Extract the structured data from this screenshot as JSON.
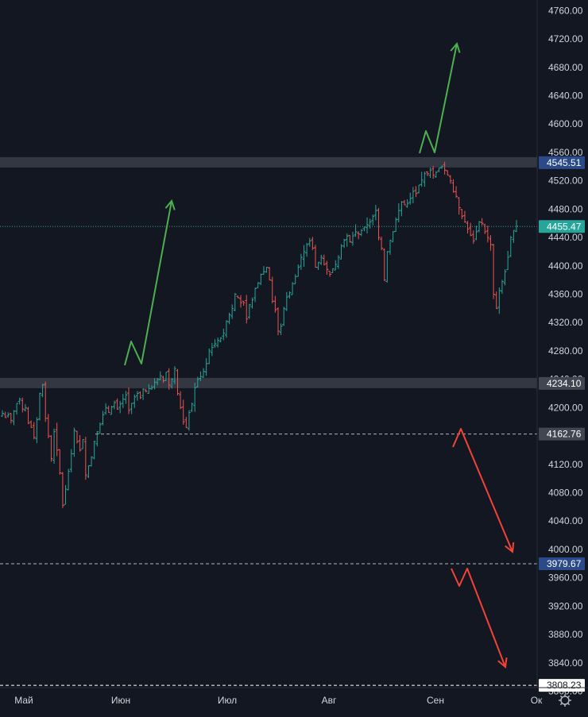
{
  "chart_data": {
    "type": "ohlc",
    "y_range": [
      3805,
      4775
    ],
    "y_ticks": [
      "4760.00",
      "4720.00",
      "4680.00",
      "4640.00",
      "4600.00",
      "4560.00",
      "4520.00",
      "4480.00",
      "4440.00",
      "4400.00",
      "4360.00",
      "4320.00",
      "4280.00",
      "4240.00",
      "4200.00",
      "4160.00",
      "4120.00",
      "4080.00",
      "4040.00",
      "4000.00",
      "3960.00",
      "3920.00",
      "3880.00",
      "3840.00",
      "3800.00"
    ],
    "x_labels": [
      "Май",
      "Июн",
      "Июл",
      "Авг",
      "Сен",
      "Ок"
    ],
    "last_price": "4455.47",
    "levels": [
      {
        "label": "4545.51",
        "value": 4545.51,
        "kind": "zone",
        "badge": "#2a4a8a"
      },
      {
        "label": "4234.10",
        "value": 4234.1,
        "kind": "zone",
        "badge": "#434651"
      },
      {
        "label": "4162.76",
        "value": 4162.76,
        "kind": "dashed",
        "badge": "#434651"
      },
      {
        "label": "3979.67",
        "value": 3979.67,
        "kind": "dashed",
        "badge": "#2a4a8a"
      },
      {
        "label": "3808.23",
        "value": 3808.23,
        "kind": "dashed-white",
        "badge": "#ffffff"
      }
    ],
    "closes": [
      4192,
      4186,
      4190,
      4182,
      4195,
      4206,
      4212,
      4198,
      4200,
      4178,
      4172,
      4158,
      4183,
      4220,
      4232,
      4185,
      4160,
      4128,
      4166,
      4140,
      4108,
      4062,
      4085,
      4110,
      4135,
      4168,
      4152,
      4140,
      4155,
      4105,
      4118,
      4130,
      4152,
      4166,
      4176,
      4190,
      4200,
      4193,
      4201,
      4207,
      4198,
      4205,
      4212,
      4218,
      4196,
      4206,
      4215,
      4220,
      4214,
      4226,
      4223,
      4227,
      4228,
      4236,
      4240,
      4245,
      4238,
      4250,
      4232,
      4240,
      4255,
      4220,
      4200,
      4180,
      4172,
      4193,
      4205,
      4228,
      4240,
      4244,
      4251,
      4262,
      4280,
      4285,
      4290,
      4295,
      4298,
      4305,
      4322,
      4331,
      4340,
      4360,
      4355,
      4348,
      4348,
      4325,
      4345,
      4352,
      4368,
      4376,
      4388,
      4392,
      4398,
      4380,
      4350,
      4338,
      4308,
      4315,
      4340,
      4356,
      4362,
      4375,
      4385,
      4398,
      4412,
      4420,
      4430,
      4435,
      4425,
      4398,
      4405,
      4412,
      4402,
      4395,
      4388,
      4396,
      4402,
      4412,
      4428,
      4436,
      4442,
      4434,
      4442,
      4448,
      4445,
      4450,
      4455,
      4458,
      4462,
      4470,
      4478,
      4440,
      4425,
      4380,
      4420,
      4436,
      4448,
      4465,
      4478,
      4490,
      4486,
      4488,
      4495,
      4505,
      4502,
      4514,
      4521,
      4530,
      4530,
      4535,
      4528,
      4532,
      4538,
      4540,
      4535,
      4528,
      4520,
      4505,
      4498,
      4482,
      4470,
      4462,
      4452,
      4443,
      4435,
      4448,
      4462,
      4460,
      4448,
      4440,
      4430,
      4360,
      4340,
      4365,
      4378,
      4392,
      4412,
      4440,
      4450,
      4456
    ]
  }
}
